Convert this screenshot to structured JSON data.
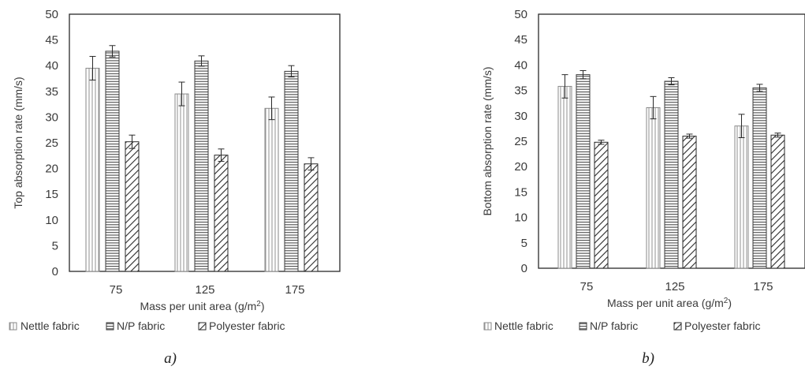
{
  "chart_data": [
    {
      "type": "bar",
      "panel_caption": "a)",
      "categories": [
        "75",
        "125",
        "175"
      ],
      "series": [
        {
          "name": "Nettle fabric",
          "values": [
            39.5,
            34.5,
            31.7
          ],
          "errors": [
            2.3,
            2.3,
            2.2
          ]
        },
        {
          "name": "N/P fabric",
          "values": [
            42.8,
            40.9,
            38.9
          ],
          "errors": [
            1.1,
            1.0,
            1.1
          ]
        },
        {
          "name": "Polyester fabric",
          "values": [
            25.2,
            22.6,
            20.9
          ],
          "errors": [
            1.3,
            1.2,
            1.2
          ]
        }
      ],
      "xlabel_main": "Mass per unit area (g/m",
      "xlabel_sup": "2",
      "xlabel_end": ")",
      "ylabel": "Top absorption rate (mm/s)",
      "ylim": [
        0,
        50
      ],
      "yticks": [
        "0",
        "5",
        "10",
        "15",
        "20",
        "25",
        "30",
        "35",
        "40",
        "45",
        "50"
      ],
      "grid": false,
      "legend_position": "bottom"
    },
    {
      "type": "bar",
      "panel_caption": "b)",
      "categories": [
        "75",
        "125",
        "175"
      ],
      "series": [
        {
          "name": "Nettle fabric",
          "values": [
            35.8,
            31.6,
            28.0
          ],
          "errors": [
            2.3,
            2.2,
            2.3
          ]
        },
        {
          "name": "N/P fabric",
          "values": [
            38.1,
            36.8,
            35.5
          ],
          "errors": [
            0.8,
            0.7,
            0.7
          ]
        },
        {
          "name": "Polyester fabric",
          "values": [
            24.8,
            26.0,
            26.2
          ],
          "errors": [
            0.4,
            0.4,
            0.4
          ]
        }
      ],
      "xlabel_main": "Mass per unit area (g/m",
      "xlabel_sup": "2",
      "xlabel_end": ")",
      "ylabel": "Bottom absorption rate (mm/s)",
      "ylim": [
        0,
        50
      ],
      "yticks": [
        "0",
        "5",
        "10",
        "15",
        "20",
        "25",
        "30",
        "35",
        "40",
        "45",
        "50"
      ],
      "grid": false,
      "legend_position": "bottom"
    }
  ]
}
